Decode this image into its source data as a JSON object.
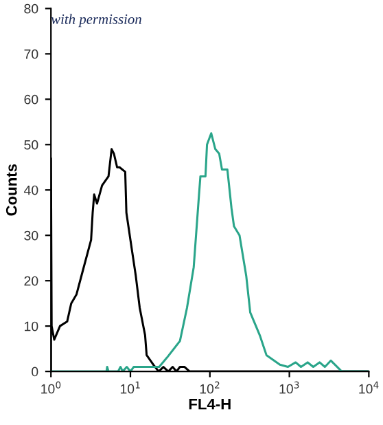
{
  "chart_data": {
    "type": "line",
    "xlabel": "FL4-H",
    "ylabel": "Counts",
    "log": "x",
    "xlim": [
      1,
      10000
    ],
    "ylim": [
      0,
      80
    ],
    "xticks": [
      {
        "value": 1,
        "label": "10$^{0}$"
      },
      {
        "value": 10,
        "label": "10$^{1}$"
      },
      {
        "value": 100,
        "label": "10$^{2}$"
      },
      {
        "value": 1000,
        "label": "10$^{3}$"
      },
      {
        "value": 10000,
        "label": "10$^{4}$"
      }
    ],
    "yticks": [
      0,
      10,
      20,
      30,
      40,
      50,
      60,
      70,
      80
    ],
    "grid": false,
    "legend": false,
    "marker": "none",
    "line_style": "solid",
    "annotations": [
      "with permission"
    ],
    "series": [
      {
        "color": "#000000",
        "x": [
          1.0,
          1.0,
          1.02,
          1.1,
          1.3,
          1.6,
          1.8,
          2.1,
          2.5,
          3.2,
          3.35,
          3.5,
          3.8,
          4.4,
          5.3,
          5.8,
          6.2,
          6.8,
          7.3,
          8.6,
          8.9,
          10.4,
          11.7,
          13.1,
          15.3,
          16,
          19.4,
          22.7,
          26,
          30,
          34,
          38,
          42,
          48,
          55.6,
          100,
          1000,
          10000
        ],
        "values": [
          0,
          47,
          10,
          7,
          10,
          11,
          15,
          17,
          22,
          29,
          35,
          39,
          37,
          41,
          43,
          49,
          48,
          45,
          45,
          44,
          35,
          27,
          21,
          14,
          8,
          3.6,
          1.5,
          0,
          1,
          0,
          1,
          0,
          1,
          1,
          0,
          0,
          0,
          0
        ]
      },
      {
        "color": "#2aa58a",
        "x": [
          1,
          5,
          5.1,
          5.3,
          7,
          7.5,
          8,
          9,
          10,
          11,
          23,
          28.7,
          42,
          51.5,
          62.6,
          73,
          76,
          88,
          92,
          104,
          117,
          131,
          142,
          166,
          187,
          201,
          236,
          287,
          322,
          424,
          515,
          760,
          960,
          1200,
          1400,
          1700,
          2000,
          2400,
          2800,
          3330,
          4560,
          10000
        ],
        "values": [
          0,
          0,
          1,
          0,
          0,
          1,
          0,
          1,
          0,
          1,
          1,
          3,
          6.7,
          14,
          23,
          39,
          43,
          43,
          50,
          52.5,
          49,
          48,
          44.5,
          44.5,
          36,
          32,
          30,
          21,
          13,
          8,
          3.6,
          1.5,
          1,
          2,
          1,
          2,
          1,
          2,
          1,
          2.4,
          0,
          0
        ]
      }
    ]
  }
}
